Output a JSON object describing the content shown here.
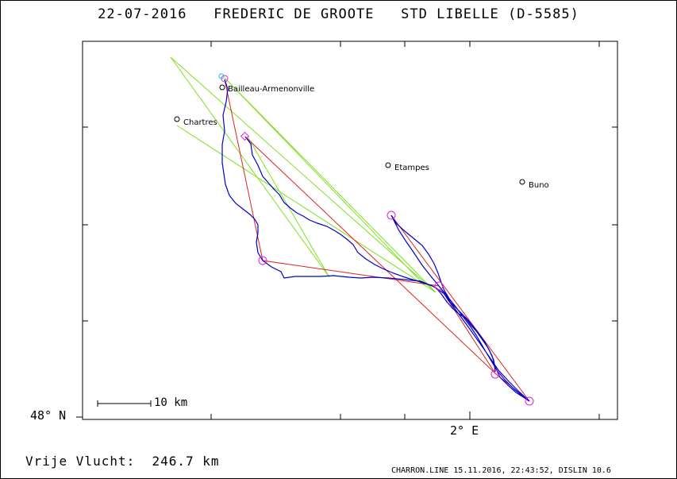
{
  "header": {
    "date": "22-07-2016",
    "pilot": "FREDERIC DE GROOTE",
    "glider": "STD LIBELLE (D-5585)"
  },
  "axes": {
    "lat_label": "48° N",
    "lon_label": "2° E"
  },
  "scale": {
    "label": "10 km"
  },
  "summary": {
    "label": "Vrije Vlucht:",
    "value": "246.7 km"
  },
  "footer": "CHARRON.LINE 15.11.2016, 22:43:52, DISLIN 10.6",
  "towns": [
    {
      "name": "Bailleau-Armenonville"
    },
    {
      "name": "Chartres"
    },
    {
      "name": "Etampes"
    },
    {
      "name": "Buno"
    }
  ],
  "colors": {
    "track": "#0000cc",
    "task_legs": "#e02020",
    "free_flight_legs": "#80e020",
    "turnpoints": "#e020e0",
    "frame": "#000000"
  }
}
